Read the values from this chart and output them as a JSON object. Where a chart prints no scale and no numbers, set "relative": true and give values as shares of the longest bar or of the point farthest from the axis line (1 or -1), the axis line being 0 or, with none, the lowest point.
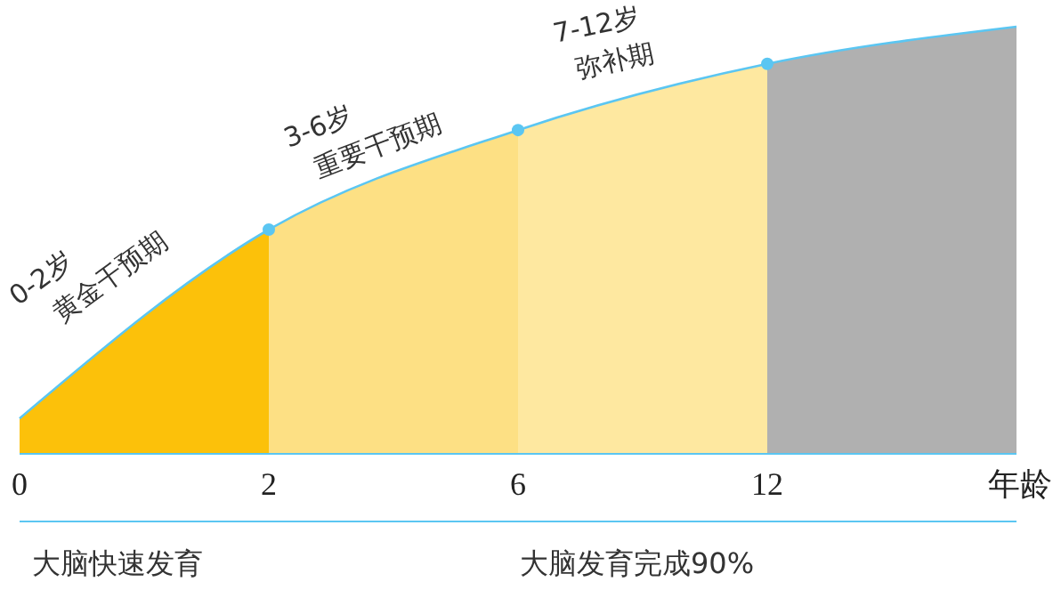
{
  "chart_data": {
    "type": "area",
    "categories": [
      "0",
      "2",
      "6",
      "12",
      null
    ],
    "xlabel": "年龄",
    "relative": true,
    "series": [
      {
        "color": "#fcc10a",
        "values": [
          0.083,
          0.525,
          null,
          null,
          null
        ]
      },
      {
        "color": "#fde084",
        "values": [
          null,
          0.525,
          0.758,
          null,
          null
        ]
      },
      {
        "color": "#fee8a0",
        "values": [
          null,
          null,
          0.758,
          0.913,
          null
        ]
      },
      {
        "color": "#b0b0b0",
        "values": [
          null,
          null,
          null,
          0.913,
          1
        ]
      },
      {
        "type": "line",
        "color": "#5bc6f2",
        "marker": "circle",
        "values": [
          0.083,
          0.525,
          0.758,
          0.913,
          1
        ]
      }
    ],
    "annotations": [
      "0-2岁",
      "黄金干预期",
      "3-6岁",
      "重要干预期",
      "7-12岁",
      "弥补期",
      "大脑快速发育",
      "大脑发育完成90%"
    ]
  }
}
